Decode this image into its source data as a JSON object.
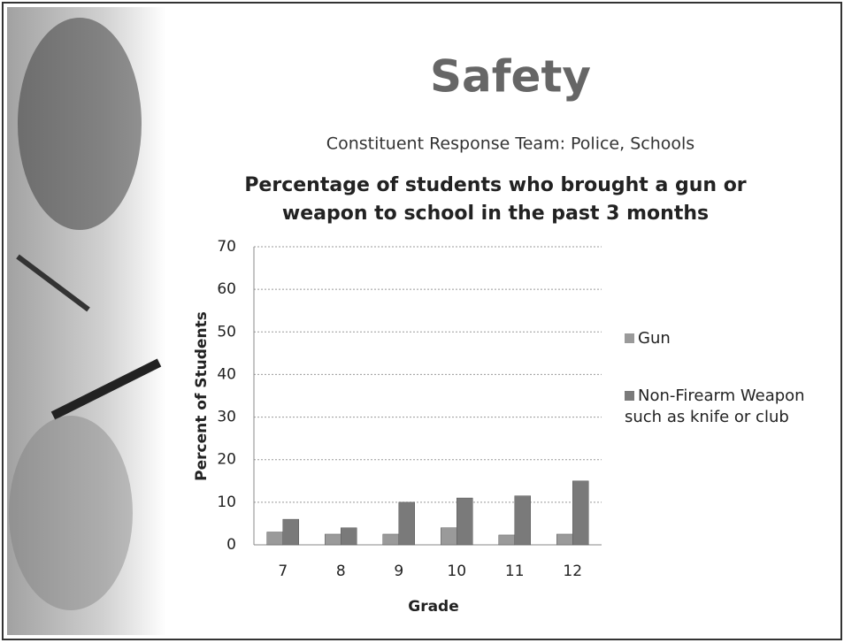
{
  "slide": {
    "title": "Safety",
    "subtitle": "Constituent Response Team: Police, Schools"
  },
  "chart_data": {
    "type": "bar",
    "title": [
      "Percentage of students who brought a gun or",
      "weapon to school in the past 3 months"
    ],
    "x_label": "Grade",
    "y_label": "Percent of Students",
    "categories": [
      "7",
      "8",
      "9",
      "10",
      "11",
      "12"
    ],
    "series": [
      {
        "name": "Gun",
        "color": "#9a9a9a",
        "values": [
          3,
          2.5,
          2.5,
          4,
          2.3,
          2.5
        ]
      },
      {
        "name": "Non-Firearm Weapon such as knife or club",
        "color": "#7a7a7a",
        "values": [
          6,
          4,
          10,
          11,
          11.5,
          15
        ]
      }
    ],
    "ylim": [
      0,
      70
    ],
    "yticks": [
      0,
      10,
      20,
      30,
      40,
      50,
      60,
      70
    ],
    "grid": true,
    "legend": "right"
  }
}
